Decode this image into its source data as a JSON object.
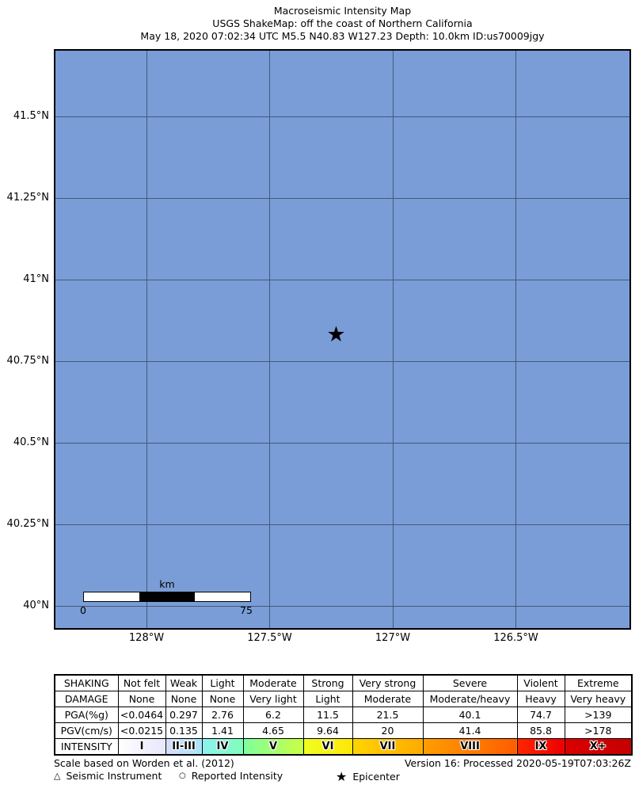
{
  "title": {
    "line1": "Macroseismic Intensity Map",
    "line2": "USGS ShakeMap: off the coast of Northern California",
    "line3": "May 18, 2020 07:02:34 UTC M5.5 N40.83 W127.23 Depth: 10.0km ID:us70009jgy"
  },
  "map": {
    "ocean_color": "#7a9dd7",
    "grid_color": "#44587c",
    "border_color": "#000000",
    "lat_ticks": [
      {
        "value": 41.5,
        "label": "41.5°N"
      },
      {
        "value": 41.25,
        "label": "41.25°N"
      },
      {
        "value": 41.0,
        "label": "41°N"
      },
      {
        "value": 40.75,
        "label": "40.75°N"
      },
      {
        "value": 40.5,
        "label": "40.5°N"
      },
      {
        "value": 40.25,
        "label": "40.25°N"
      },
      {
        "value": 40.0,
        "label": "40°N"
      }
    ],
    "lon_ticks": [
      {
        "value": 128.0,
        "label": "128°W"
      },
      {
        "value": 127.5,
        "label": "127.5°W"
      },
      {
        "value": 127.0,
        "label": "127°W"
      },
      {
        "value": 126.5,
        "label": "126.5°W"
      }
    ],
    "epicenter": {
      "lat": 40.83,
      "lon_w": 127.23,
      "icon": "star-icon",
      "char": "★"
    },
    "scale_bar": {
      "units_label": "km",
      "start_label": "0",
      "end_label": "75"
    }
  },
  "table": {
    "rows": [
      {
        "label": "SHAKING",
        "cells": [
          "Not felt",
          "Weak",
          "Light",
          "Moderate",
          "Strong",
          "Very strong",
          "Severe",
          "Violent",
          "Extreme"
        ]
      },
      {
        "label": "DAMAGE",
        "cells": [
          "None",
          "None",
          "None",
          "Very light",
          "Light",
          "Moderate",
          "Moderate/heavy",
          "Heavy",
          "Very heavy"
        ]
      },
      {
        "label": "PGA(%g)",
        "cells": [
          "<0.0464",
          "0.297",
          "2.76",
          "6.2",
          "11.5",
          "21.5",
          "40.1",
          "74.7",
          ">139"
        ]
      },
      {
        "label": "PGV(cm/s)",
        "cells": [
          "<0.0215",
          "0.135",
          "1.41",
          "4.65",
          "9.64",
          "20",
          "41.4",
          "85.8",
          ">178"
        ]
      },
      {
        "label": "INTENSITY",
        "cells": [
          "I",
          "II-III",
          "IV",
          "V",
          "VI",
          "VII",
          "VIII",
          "IX",
          "X+"
        ]
      }
    ],
    "intensity_colors": [
      [
        "#ffffff",
        "#e6e7fb"
      ],
      [
        "#d8dcfd",
        "#a5e6f8"
      ],
      [
        "#8df2f1",
        "#7ffdb9"
      ],
      [
        "#7eff9d",
        "#c9ff43"
      ],
      [
        "#eeff20",
        "#ffe60a"
      ],
      [
        "#ffd400",
        "#ffab00"
      ],
      [
        "#ff9e00",
        "#ff5d00"
      ],
      [
        "#ff2600",
        "#ec0000"
      ],
      [
        "#da0000",
        "#c60000"
      ]
    ]
  },
  "footer": {
    "scale_note": "Scale based on Worden et al. (2012)",
    "version": "Version 16: Processed 2020-05-19T07:03:26Z",
    "legend": [
      {
        "icon": "open-triangle-icon",
        "char": "△",
        "label": "Seismic Instrument"
      },
      {
        "icon": "open-circle-icon",
        "char": "○",
        "label": "Reported Intensity"
      },
      {
        "icon": "star-icon",
        "char": "★",
        "label": "Epicenter"
      }
    ]
  }
}
